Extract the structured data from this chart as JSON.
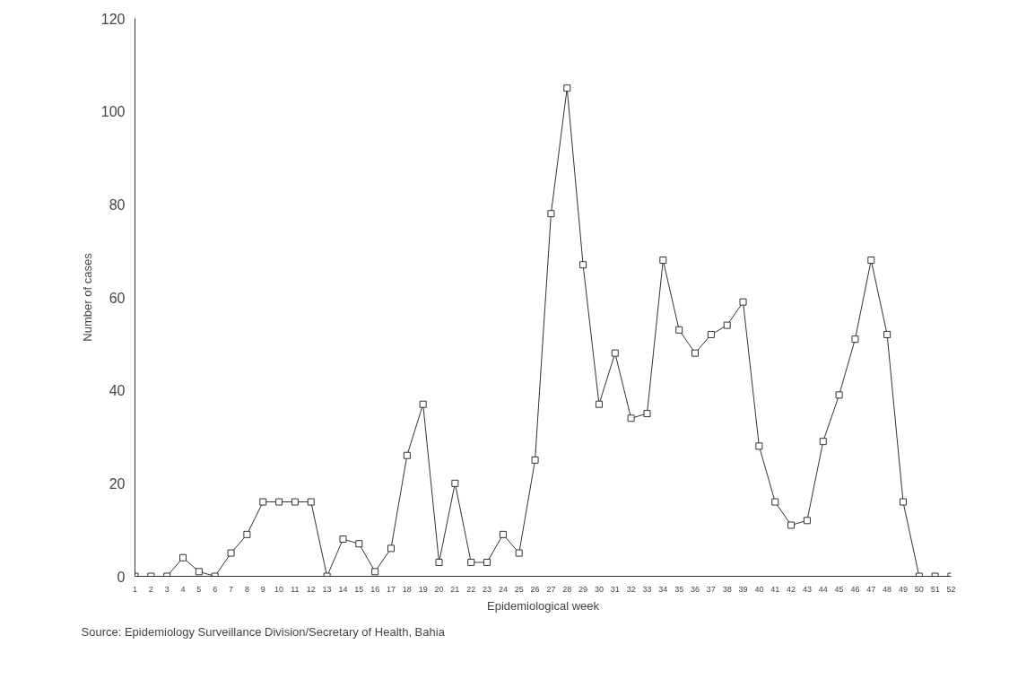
{
  "chart_data": {
    "type": "line",
    "xlabel": "Epidemiological week",
    "ylabel": "Number of cases",
    "x": [
      1,
      2,
      3,
      4,
      5,
      6,
      7,
      8,
      9,
      10,
      11,
      12,
      13,
      14,
      15,
      16,
      17,
      18,
      19,
      20,
      21,
      22,
      23,
      24,
      25,
      26,
      27,
      28,
      29,
      30,
      31,
      32,
      33,
      34,
      35,
      36,
      37,
      38,
      39,
      40,
      41,
      42,
      43,
      44,
      45,
      46,
      47,
      48,
      49,
      50,
      51,
      52
    ],
    "series": [
      {
        "color": "#333333",
        "values": [
          0,
          0,
          0,
          4,
          1,
          0,
          5,
          9,
          16,
          16,
          16,
          16,
          0,
          8,
          7,
          1,
          6,
          26,
          37,
          3,
          20,
          3,
          3,
          9,
          5,
          25,
          78,
          105,
          67,
          37,
          48,
          34,
          35,
          68,
          53,
          48,
          52,
          54,
          59,
          28,
          16,
          11,
          12,
          29,
          39,
          51,
          68,
          52,
          16,
          0,
          0,
          0
        ]
      }
    ],
    "xlim": [
      1,
      52
    ],
    "xticks": [
      1,
      2,
      3,
      4,
      5,
      6,
      7,
      8,
      9,
      10,
      11,
      12,
      13,
      14,
      15,
      16,
      17,
      18,
      19,
      20,
      21,
      22,
      23,
      24,
      25,
      26,
      27,
      28,
      29,
      30,
      31,
      32,
      33,
      34,
      35,
      36,
      37,
      38,
      39,
      40,
      41,
      42,
      43,
      44,
      45,
      46,
      47,
      48,
      49,
      50,
      51,
      52
    ],
    "ylim": [
      0,
      120
    ],
    "yticks": [
      0,
      20,
      40,
      60,
      80,
      100,
      120
    ],
    "grid": false,
    "marker": "square",
    "line_style": "solid",
    "annotations": [
      "Source: Epidemiology Surveillance Division/Secretary of Health, Bahia"
    ]
  }
}
